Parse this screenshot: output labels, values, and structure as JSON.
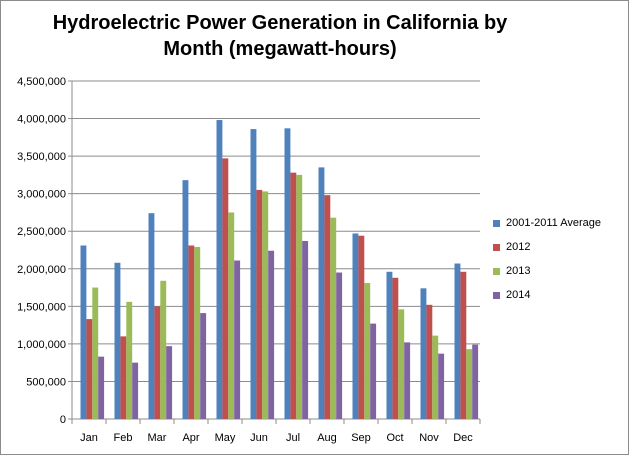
{
  "chart_data": {
    "type": "bar",
    "title_line1": "Hydroelectric Power Generation in California by",
    "title_line2": "Month (megawatt-hours)",
    "xlabel": "",
    "ylabel": "",
    "ylim": [
      0,
      4500000
    ],
    "yticks": [
      "0",
      "500,000",
      "1,000,000",
      "1,500,000",
      "2,000,000",
      "2,500,000",
      "3,000,000",
      "3,500,000",
      "4,000,000",
      "4,500,000"
    ],
    "grid": true,
    "legend_position": "right",
    "categories": [
      "Jan",
      "Feb",
      "Mar",
      "Apr",
      "May",
      "Jun",
      "Jul",
      "Aug",
      "Sep",
      "Oct",
      "Nov",
      "Dec"
    ],
    "series": [
      {
        "name": "2001-2011 Average",
        "color": "#4f81bd",
        "values": [
          2310000,
          2080000,
          2740000,
          3180000,
          3980000,
          3860000,
          3870000,
          3350000,
          2470000,
          1960000,
          1740000,
          2070000
        ]
      },
      {
        "name": "2012",
        "color": "#c0504d",
        "values": [
          1330000,
          1100000,
          1500000,
          2310000,
          3470000,
          3050000,
          3280000,
          2980000,
          2440000,
          1880000,
          1520000,
          1960000
        ]
      },
      {
        "name": "2013",
        "color": "#9bbb59",
        "values": [
          1750000,
          1560000,
          1840000,
          2290000,
          2750000,
          3030000,
          3250000,
          2680000,
          1810000,
          1460000,
          1110000,
          930000
        ]
      },
      {
        "name": "2014",
        "color": "#8064a2",
        "values": [
          830000,
          750000,
          970000,
          1410000,
          2110000,
          2240000,
          2370000,
          1950000,
          1270000,
          1020000,
          870000,
          990000
        ]
      }
    ]
  }
}
